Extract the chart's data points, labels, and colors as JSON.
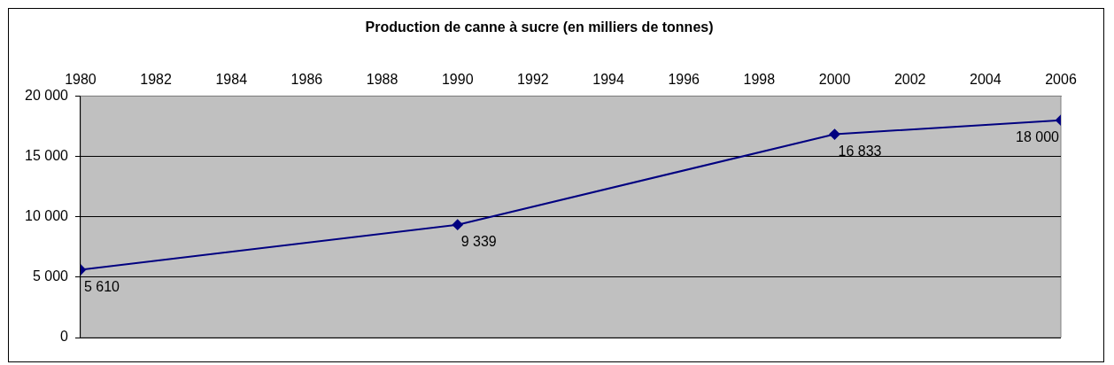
{
  "chart_data": {
    "type": "line",
    "title": "Production de canne à sucre (en milliers de tonnes)",
    "x": [
      1980,
      1990,
      2000,
      2006
    ],
    "series": [
      {
        "color": "#000080",
        "values": [
          5610,
          9339,
          16833,
          18000
        ],
        "value_labels": [
          "5 610",
          "9 339",
          "16 833",
          "18 000"
        ]
      }
    ],
    "xlim": [
      1980,
      2006
    ],
    "xticks": [
      1980,
      1982,
      1984,
      1986,
      1988,
      1990,
      1992,
      1994,
      1996,
      1998,
      2000,
      2002,
      2004,
      2006
    ],
    "ylim": [
      0,
      20000
    ],
    "yticks": [
      {
        "value": 0,
        "label": "0"
      },
      {
        "value": 5000,
        "label": "5 000"
      },
      {
        "value": 10000,
        "label": "10 000"
      },
      {
        "value": 15000,
        "label": "15 000"
      },
      {
        "value": 20000,
        "label": "20 000"
      }
    ],
    "grid": "y",
    "legend": false,
    "marker": "diamond",
    "line_style": "solid"
  }
}
